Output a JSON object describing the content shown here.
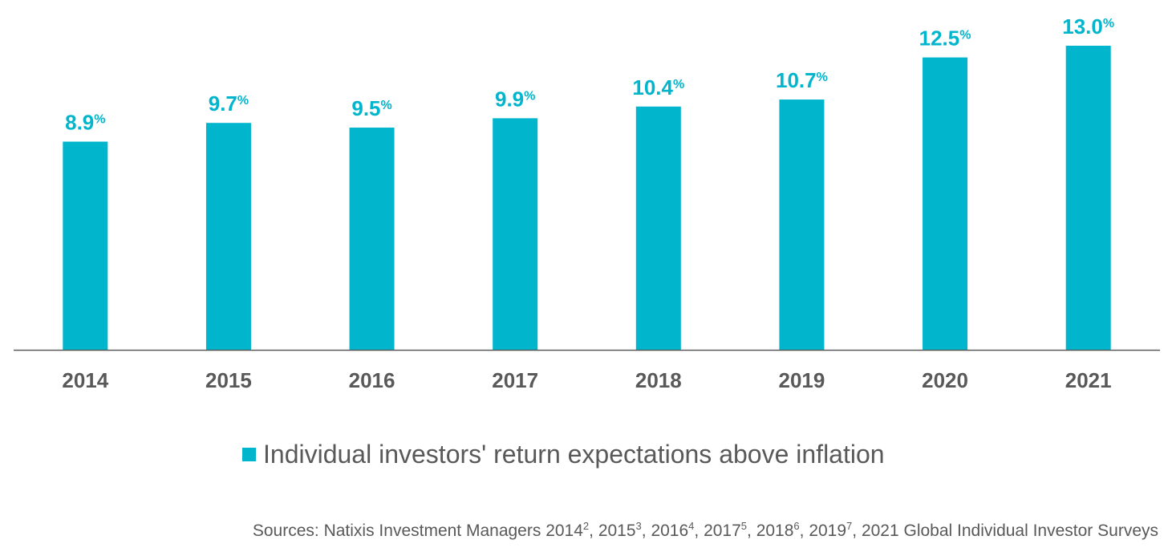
{
  "chart_data": {
    "type": "bar",
    "categories": [
      "2014",
      "2015",
      "2016",
      "2017",
      "2018",
      "2019",
      "2020",
      "2021"
    ],
    "series": [
      {
        "name": "Individual investors' return expectations above inflation",
        "values": [
          8.9,
          9.7,
          9.5,
          9.9,
          10.4,
          10.7,
          12.5,
          13.0
        ]
      }
    ],
    "data_labels": [
      "8.9",
      "9.7",
      "9.5",
      "9.9",
      "10.4",
      "10.7",
      "12.5",
      "13.0"
    ],
    "label_suffix": "%",
    "ylim": [
      0,
      13.0
    ],
    "grid": false,
    "legend_position": "bottom",
    "colors": {
      "bar": "#00B5CC",
      "label": "#00B5CC",
      "axis": "#595959",
      "text": "#595959"
    }
  },
  "legend": {
    "label": "Individual investors' return expectations above inflation"
  },
  "sources": {
    "prefix": "Sources: Natixis Investment Managers 2014",
    "sup1": "2",
    "t2": ", 2015",
    "sup2": "3",
    "t3": ", 2016",
    "sup3": "4",
    "t4": ", 2017",
    "sup4": "5",
    "t5": ", 2018",
    "sup5": "6",
    "t6": ", 2019",
    "sup6": "7",
    "t7": ", 2021 Global Individual Investor Surveys"
  }
}
